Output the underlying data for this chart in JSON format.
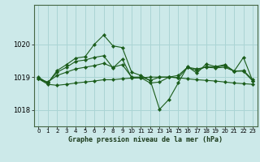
{
  "background_color": "#cce9e9",
  "grid_color": "#aad4d4",
  "line_color": "#1a5c1a",
  "marker_color": "#1a5c1a",
  "xlabel": "Graphe pression niveau de la mer (hPa)",
  "ylim": [
    1017.5,
    1021.2
  ],
  "yticks": [
    1018,
    1019,
    1020
  ],
  "xlim": [
    -0.5,
    23.5
  ],
  "xticks": [
    0,
    1,
    2,
    3,
    4,
    5,
    6,
    7,
    8,
    9,
    10,
    11,
    12,
    13,
    14,
    15,
    16,
    17,
    18,
    19,
    20,
    21,
    22,
    23
  ],
  "series": [
    [
      1018.95,
      1018.78,
      1018.75,
      1018.78,
      1018.82,
      1018.85,
      1018.88,
      1018.92,
      1018.92,
      1018.95,
      1018.97,
      1018.98,
      1019.0,
      1019.0,
      1019.0,
      1018.98,
      1018.95,
      1018.92,
      1018.9,
      1018.88,
      1018.85,
      1018.82,
      1018.8,
      1018.78
    ],
    [
      1018.95,
      1018.85,
      1019.05,
      1019.15,
      1019.25,
      1019.3,
      1019.35,
      1019.42,
      1019.3,
      1019.38,
      1019.0,
      1019.0,
      1018.9,
      1019.0,
      1019.0,
      1019.05,
      1019.3,
      1019.25,
      1019.3,
      1019.28,
      1019.3,
      1019.18,
      1019.2,
      1018.92
    ],
    [
      1019.0,
      1018.82,
      1019.15,
      1019.3,
      1019.48,
      1019.52,
      1019.6,
      1019.65,
      1019.28,
      1019.55,
      1018.98,
      1018.98,
      1018.82,
      1018.85,
      1019.0,
      1018.98,
      1019.3,
      1019.2,
      1019.32,
      1019.3,
      1019.35,
      1019.18,
      1019.18,
      1018.88
    ],
    [
      1018.95,
      1018.82,
      1019.2,
      1019.38,
      1019.58,
      1019.62,
      1020.0,
      1020.28,
      1019.95,
      1019.9,
      1019.15,
      1019.05,
      1018.9,
      1018.02,
      1018.32,
      1018.82,
      1019.32,
      1019.12,
      1019.4,
      1019.32,
      1019.38,
      1019.18,
      1019.6,
      1018.88
    ]
  ]
}
